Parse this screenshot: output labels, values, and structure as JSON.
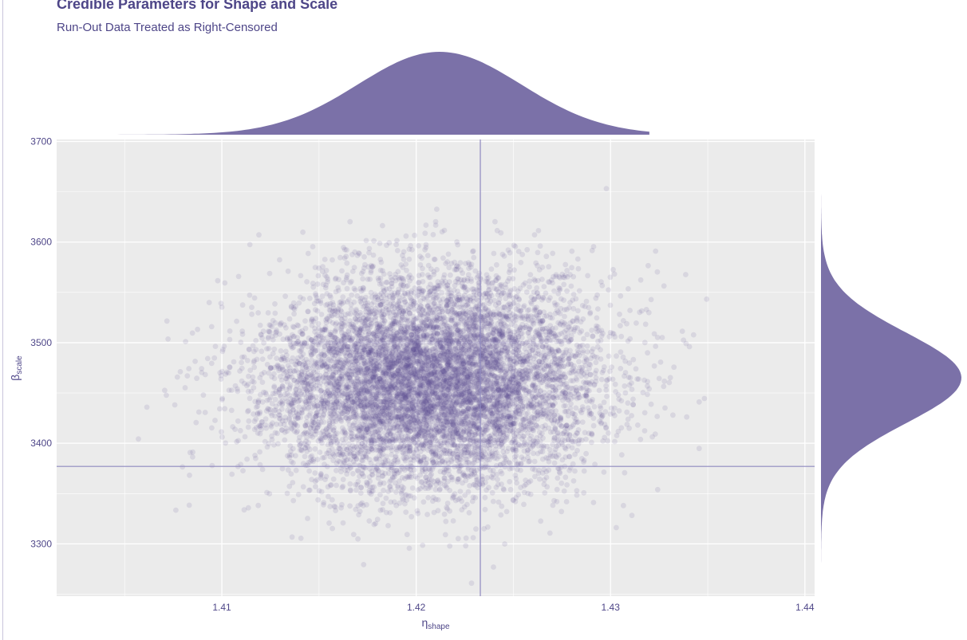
{
  "chart_data": {
    "type": "scatter",
    "title": "Credible Parameters for Shape and Scale",
    "subtitle": "Run-Out Data Treated as Right-Censored",
    "xlabel": {
      "symbol": "η",
      "subscript": "shape"
    },
    "ylabel": {
      "symbol": "β",
      "subscript": "scale"
    },
    "xlim": [
      1.4015,
      1.4405
    ],
    "ylim": [
      3248,
      3702
    ],
    "x_ticks": [
      1.41,
      1.42,
      1.43,
      1.44
    ],
    "x_tick_labels": [
      "1.41",
      "1.42",
      "1.43",
      "1.44"
    ],
    "y_ticks": [
      3300,
      3400,
      3500,
      3600,
      3700
    ],
    "y_tick_labels": [
      "3300",
      "3400",
      "3500",
      "3600",
      "3700"
    ],
    "grid": true,
    "reference_lines": {
      "x": 1.4233,
      "y": 3377
    },
    "points": {
      "n": 9000,
      "x_mean": 1.4208,
      "x_sd": 0.0042,
      "y_mean": 3462,
      "y_sd": 52,
      "correlation": 0.02,
      "color": "#5b4f94",
      "alpha": 0.13
    },
    "x_marginal_density": {
      "mean": 1.4212,
      "sd": 0.0042,
      "range": [
        1.4,
        1.432
      ]
    },
    "y_marginal_density": {
      "mean": 3465,
      "sd": 45,
      "range": [
        3265,
        3682
      ]
    },
    "colors": {
      "panel_background": "#ebebeb",
      "grid": "#ffffff",
      "text": "#4e4688",
      "points": "#5b4f94",
      "density_fill": "#7b71a8",
      "reference_line": "#8f89bf"
    }
  }
}
